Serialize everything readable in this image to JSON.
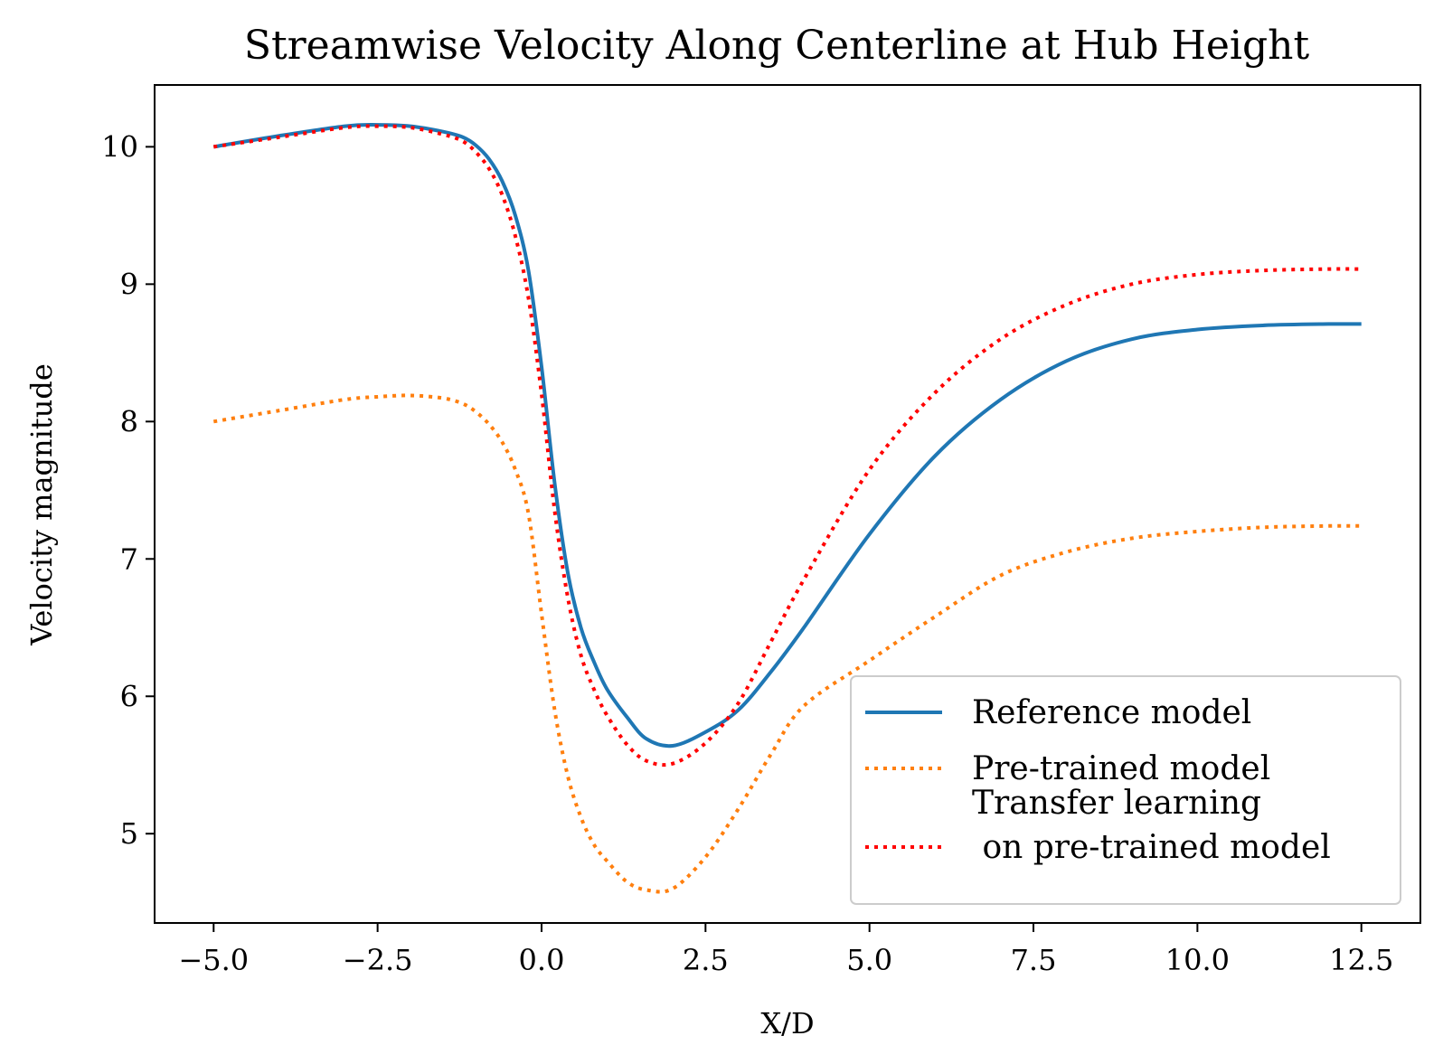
{
  "chart_data": {
    "type": "line",
    "title": "Streamwise Velocity Along Centerline at Hub Height",
    "xlabel": "X/D",
    "ylabel": "Velocity magnitude",
    "xlim": [
      -5.9,
      13.4
    ],
    "ylim": [
      4.35,
      10.45
    ],
    "xticks": [
      -5.0,
      -2.5,
      0.0,
      2.5,
      5.0,
      7.5,
      10.0,
      12.5
    ],
    "xtick_labels": [
      "−5.0",
      "−2.5",
      "0.0",
      "2.5",
      "5.0",
      "7.5",
      "10.0",
      "12.5"
    ],
    "yticks": [
      5,
      6,
      7,
      8,
      9,
      10
    ],
    "ytick_labels": [
      "5",
      "6",
      "7",
      "8",
      "9",
      "10"
    ],
    "grid": false,
    "legend_position": "lower-right",
    "x": [
      -5.0,
      -4.0,
      -3.0,
      -2.5,
      -2.0,
      -1.5,
      -1.2,
      -1.0,
      -0.8,
      -0.6,
      -0.4,
      -0.2,
      0.0,
      0.2,
      0.4,
      0.6,
      0.8,
      1.0,
      1.3,
      1.6,
      2.0,
      2.5,
      3.0,
      3.5,
      4.0,
      5.0,
      6.0,
      7.0,
      8.0,
      9.0,
      10.0,
      11.0,
      12.0,
      12.5
    ],
    "series": [
      {
        "name": "Reference model",
        "color": "#1f77b4",
        "style": "solid",
        "values": [
          10.0,
          10.08,
          10.15,
          10.16,
          10.15,
          10.11,
          10.07,
          10.01,
          9.91,
          9.75,
          9.5,
          9.1,
          8.4,
          7.55,
          6.9,
          6.5,
          6.25,
          6.05,
          5.85,
          5.69,
          5.64,
          5.74,
          5.9,
          6.18,
          6.5,
          7.18,
          7.75,
          8.16,
          8.44,
          8.6,
          8.67,
          8.7,
          8.71,
          8.71
        ]
      },
      {
        "name": "Pre-trained model",
        "color": "#ff7f0e",
        "style": "dotted",
        "values": [
          8.0,
          8.08,
          8.16,
          8.18,
          8.19,
          8.17,
          8.13,
          8.07,
          7.98,
          7.85,
          7.65,
          7.33,
          6.6,
          5.9,
          5.42,
          5.12,
          4.92,
          4.8,
          4.65,
          4.59,
          4.6,
          4.83,
          5.18,
          5.58,
          5.93,
          6.26,
          6.58,
          6.88,
          7.05,
          7.15,
          7.2,
          7.23,
          7.24,
          7.24
        ]
      },
      {
        "name": "Transfer learning\n on pre-trained model",
        "color": "#ff0000",
        "style": "dotted",
        "values": [
          10.0,
          10.07,
          10.14,
          10.15,
          10.14,
          10.09,
          10.04,
          9.96,
          9.84,
          9.65,
          9.35,
          8.9,
          8.2,
          7.35,
          6.72,
          6.3,
          6.05,
          5.86,
          5.65,
          5.53,
          5.51,
          5.66,
          5.95,
          6.4,
          6.85,
          7.65,
          8.21,
          8.6,
          8.85,
          9.0,
          9.07,
          9.1,
          9.11,
          9.11
        ]
      }
    ]
  }
}
